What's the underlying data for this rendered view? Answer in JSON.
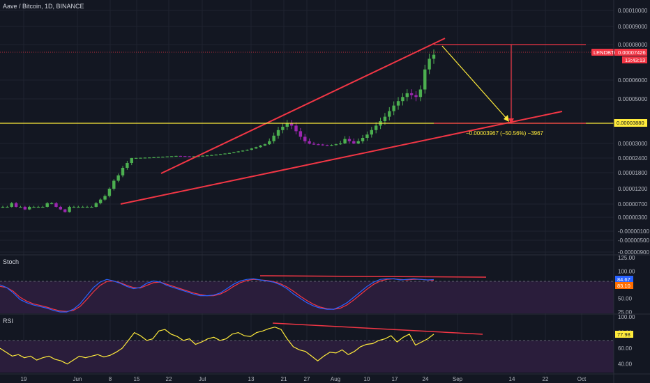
{
  "header": {
    "title": "Aave / Bitcoin, 1D, BINANCE"
  },
  "colors": {
    "background": "#131722",
    "grid": "#1f2330",
    "up": "#4caf50",
    "down": "#9c27b0",
    "trendline": "#f23645",
    "price_line": "#f23645",
    "level_line": "#ffeb3b",
    "stoch_k": "#2962ff",
    "stoch_d": "#f23645",
    "rsi": "#ffeb3b",
    "osc_band": "#2a1d3b"
  },
  "chart_data": [
    {
      "type": "candlestick",
      "name": "price",
      "symbol": "LENDBTC",
      "x_ticks": [
        "19",
        "Jun",
        "8",
        "15",
        "22",
        "Jul",
        "13",
        "21",
        "27",
        "Aug",
        "10",
        "17",
        "24",
        "Sep",
        "14",
        "22",
        "Oct"
      ],
      "y_ticks": [
        "0.00010000",
        "0.00009000",
        "0.00008000",
        "0.00006000",
        "0.00005000",
        "0.00003000",
        "0.00002400",
        "0.00001800",
        "0.00001200",
        "0.00000700",
        "0.00000300",
        "-0.00000100",
        "-0.00000500",
        "-0.00000900"
      ],
      "last_price_label": "0.00007426",
      "countdown_label": "13:43:13",
      "level_label": "0.00003880",
      "measure_label": "−0.00003967 (−50.56%) −3967",
      "closes": [
        7e-07,
        7e-07,
        8e-07,
        7e-07,
        7e-07,
        6e-07,
        7e-07,
        7e-07,
        7e-07,
        7e-07,
        8e-07,
        8e-07,
        7e-07,
        6e-07,
        5e-07,
        7e-07,
        7e-07,
        7e-07,
        7e-07,
        7e-07,
        7e-07,
        8e-07,
        9e-07,
        1e-06,
        1.2e-06,
        1.5e-06,
        1.7e-06,
        2e-06,
        2.2e-06,
        2.5e-06,
        2.7e-06,
        3e-06,
        3.3e-06,
        3.6e-06,
        4e-06,
        4.5e-06,
        5e-06,
        5.5e-06,
        6e-06,
        6.5e-06,
        6.2e-06,
        5.8e-06,
        5.5e-06,
        5.8e-06,
        6.2e-06,
        6.8e-06,
        7.5e-06,
        8.2e-06,
        9e-06,
        1e-05,
        1.1e-05,
        1.2e-05,
        1.35e-05,
        1.5e-05,
        1.65e-05,
        1.8e-05,
        2.05e-05,
        2.3e-05,
        2.6e-05,
        2.85e-05,
        3.1e-05,
        3.35e-05,
        3.6e-05,
        3.75e-05,
        3.9e-05,
        3.8e-05,
        3.55e-05,
        3.3e-05,
        3.1e-05,
        2.95e-05,
        2.85e-05,
        2.8e-05,
        2.68e-05,
        2.6e-05,
        2.72e-05,
        2.85e-05,
        3e-05,
        3.2e-05,
        3.1e-05,
        2.98e-05,
        3.1e-05,
        3.25e-05,
        3.4e-05,
        3.6e-05,
        3.8e-05,
        4e-05,
        4.2e-05,
        4.45e-05,
        4.7e-05,
        4.9e-05,
        5.1e-05,
        5.3e-05,
        5.2e-05,
        5.1e-05,
        5.5e-05,
        6.6e-05,
        7.2e-05,
        7.426e-05
      ]
    },
    {
      "type": "line",
      "name": "Stoch",
      "title": "Stoch",
      "y_ticks": [
        "125.00",
        "100.00",
        "75.00",
        "50.00",
        "25.00"
      ],
      "ylim": [
        25,
        125
      ],
      "band": [
        20,
        80
      ],
      "k_label": "84.67",
      "d_label": "83.10",
      "k": [
        75,
        70,
        60,
        48,
        42,
        38,
        35,
        32,
        28,
        25,
        25,
        30,
        40,
        55,
        70,
        80,
        85,
        82,
        78,
        72,
        68,
        70,
        78,
        82,
        80,
        74,
        70,
        66,
        62,
        58,
        55,
        55,
        56,
        60,
        68,
        76,
        82,
        85,
        86,
        84,
        82,
        80,
        75,
        68,
        58,
        50,
        42,
        36,
        32,
        30,
        30,
        35,
        42,
        52,
        62,
        72,
        80,
        85,
        86,
        86,
        84,
        85,
        86,
        85,
        84,
        84.67
      ],
      "d": [
        72,
        70,
        63,
        52,
        45,
        40,
        37,
        34,
        30,
        27,
        26,
        28,
        35,
        48,
        62,
        74,
        81,
        82,
        79,
        74,
        70,
        69,
        74,
        79,
        80,
        76,
        72,
        68,
        64,
        60,
        57,
        55,
        55,
        58,
        64,
        72,
        79,
        83,
        85,
        84,
        83,
        81,
        77,
        71,
        63,
        54,
        46,
        39,
        34,
        31,
        30,
        32,
        38,
        47,
        57,
        67,
        76,
        82,
        85,
        86,
        85,
        84,
        85,
        85,
        84,
        83.1
      ]
    },
    {
      "type": "line",
      "name": "RSI",
      "title": "RSI",
      "y_ticks": [
        "100.00",
        "80.00",
        "60.00",
        "40.00"
      ],
      "ylim": [
        30,
        100
      ],
      "band": [
        30,
        70
      ],
      "rsi_label": "77.98",
      "values": [
        60,
        55,
        50,
        52,
        48,
        50,
        45,
        48,
        50,
        46,
        44,
        40,
        45,
        50,
        48,
        50,
        52,
        49,
        51,
        55,
        60,
        70,
        80,
        76,
        70,
        72,
        82,
        84,
        78,
        75,
        70,
        72,
        65,
        68,
        72,
        74,
        70,
        72,
        78,
        80,
        76,
        75,
        80,
        82,
        85,
        87,
        84,
        72,
        62,
        58,
        56,
        50,
        44,
        50,
        55,
        54,
        58,
        52,
        56,
        62,
        65,
        66,
        70,
        72,
        76,
        68,
        74,
        78,
        64,
        68,
        72,
        77.98
      ]
    }
  ]
}
